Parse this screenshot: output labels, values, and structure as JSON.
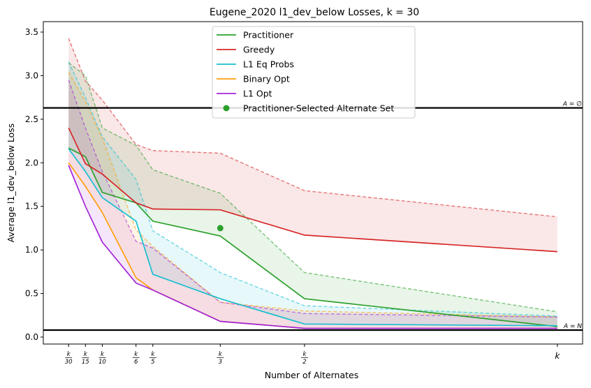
{
  "chart_data": {
    "type": "line",
    "title": "Eugene_2020 l1_dev_below Losses, k = 30",
    "xlabel": "Number of Alternates",
    "ylabel": "Average l1_dev_below Loss",
    "x": [
      1,
      2,
      3,
      5,
      6,
      10,
      15,
      30
    ],
    "x_tick_labels": [
      {
        "num": "k",
        "den": "30"
      },
      {
        "num": "k",
        "den": "15"
      },
      {
        "num": "k",
        "den": "10"
      },
      {
        "num": "k",
        "den": "6"
      },
      {
        "num": "k",
        "den": "5"
      },
      {
        "num": "k",
        "den": "3"
      },
      {
        "num": "k",
        "den": "2"
      },
      {
        "num": "k",
        "den": ""
      }
    ],
    "xlim": [
      -0.5,
      31.5
    ],
    "ylim": [
      -0.08,
      3.62
    ],
    "yticks": [
      "0.0",
      "0.5",
      "1.0",
      "1.5",
      "2.0",
      "2.5",
      "3.0",
      "3.5"
    ],
    "grid": false,
    "legend_position": "top-center",
    "series": [
      {
        "name": "Practitioner",
        "color": "#2ca02c",
        "values": [
          2.17,
          2.07,
          1.66,
          1.54,
          1.33,
          1.16,
          0.44,
          0.12
        ],
        "upper": [
          3.15,
          3.0,
          2.4,
          2.2,
          1.92,
          1.65,
          0.74,
          0.29
        ],
        "lower": [
          2.17,
          2.07,
          1.66,
          1.54,
          1.33,
          1.16,
          0.44,
          0.12
        ]
      },
      {
        "name": "Greedy",
        "color": "#d62728",
        "values": [
          2.4,
          1.99,
          1.87,
          1.54,
          1.47,
          1.46,
          1.17,
          0.98
        ],
        "upper": [
          3.43,
          2.94,
          2.72,
          2.21,
          2.14,
          2.11,
          1.68,
          1.38
        ],
        "lower": [
          2.4,
          1.99,
          1.87,
          1.54,
          1.47,
          1.46,
          1.17,
          0.98
        ]
      },
      {
        "name": "L1 Eq Probs",
        "color": "#17becf",
        "values": [
          2.16,
          1.9,
          1.6,
          1.33,
          0.72,
          0.44,
          0.15,
          0.13
        ],
        "upper": [
          3.16,
          2.75,
          2.3,
          1.81,
          1.22,
          0.74,
          0.36,
          0.24
        ],
        "lower": [
          2.16,
          1.9,
          1.6,
          1.33,
          0.72,
          0.44,
          0.15,
          0.13
        ]
      },
      {
        "name": "Binary Opt",
        "color": "#ff9f0e",
        "values": [
          2.0,
          1.73,
          1.43,
          0.68,
          0.54,
          0.18,
          0.1,
          0.1
        ],
        "upper": [
          3.04,
          2.7,
          2.28,
          1.23,
          1.04,
          0.4,
          0.3,
          0.23
        ],
        "lower": [
          2.0,
          1.73,
          1.43,
          0.68,
          0.54,
          0.18,
          0.1,
          0.1
        ]
      },
      {
        "name": "L1 Opt",
        "color": "#a425d8",
        "values": [
          1.97,
          1.5,
          1.09,
          0.62,
          0.54,
          0.18,
          0.1,
          0.1
        ],
        "upper": [
          2.95,
          2.4,
          1.9,
          1.1,
          1.02,
          0.4,
          0.27,
          0.23
        ],
        "lower": [
          1.97,
          1.5,
          1.09,
          0.62,
          0.54,
          0.18,
          0.1,
          0.1
        ]
      }
    ],
    "highlight_point": {
      "name": "Practitioner-Selected Alternate Set",
      "x": 10,
      "y": 1.25,
      "color": "#2ca02c"
    },
    "reference_lines": [
      {
        "label": "A = ∅",
        "y": 2.63
      },
      {
        "label": "A = N",
        "y": 0.08
      }
    ]
  }
}
